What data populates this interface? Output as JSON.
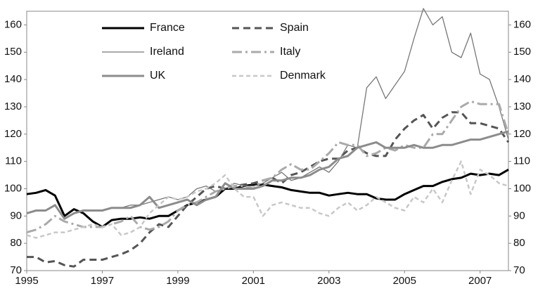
{
  "chart_data": {
    "type": "line",
    "x": [
      1995,
      1995.25,
      1995.5,
      1995.75,
      1996,
      1996.25,
      1996.5,
      1996.75,
      1997,
      1997.25,
      1997.5,
      1997.75,
      1998,
      1998.25,
      1998.5,
      1998.75,
      1999,
      1999.25,
      1999.5,
      1999.75,
      2000,
      2000.25,
      2000.5,
      2000.75,
      2001,
      2001.25,
      2001.5,
      2001.75,
      2002,
      2002.25,
      2002.5,
      2002.75,
      2003,
      2003.25,
      2003.5,
      2003.75,
      2004,
      2004.25,
      2004.5,
      2004.75,
      2005,
      2005.25,
      2005.5,
      2005.75,
      2006,
      2006.25,
      2006.5,
      2006.75,
      2007,
      2007.25,
      2007.5,
      2007.75
    ],
    "series": [
      {
        "name": "France",
        "color": "#000000",
        "width": 3,
        "dash": "none",
        "values": [
          98,
          98.5,
          99.5,
          97.5,
          90,
          92.5,
          91,
          88,
          86,
          88.5,
          89,
          89,
          89.5,
          89,
          90,
          90,
          92,
          94,
          95,
          96,
          97,
          100,
          100,
          101,
          101.5,
          101.5,
          101,
          100.5,
          99.5,
          99,
          98.5,
          98.5,
          97.5,
          98,
          98.5,
          98,
          98,
          96.5,
          96,
          96,
          98,
          99.5,
          101,
          101,
          102.5,
          103.5,
          104,
          105.5,
          105,
          105.5,
          105,
          107
        ]
      },
      {
        "name": "Spain",
        "color": "#555555",
        "width": 3,
        "dash": "10,6",
        "values": [
          75,
          75,
          73,
          73.5,
          72,
          71.5,
          74,
          74,
          74,
          75,
          76,
          77.5,
          80,
          84,
          87,
          86,
          90,
          94,
          97,
          100,
          101,
          100,
          101,
          101.5,
          102,
          103,
          104,
          102,
          105,
          106,
          108,
          110,
          111,
          111,
          114,
          115,
          113,
          112,
          112,
          118,
          122,
          125,
          127,
          122,
          126,
          128,
          128,
          124,
          124,
          123,
          122,
          117
        ]
      },
      {
        "name": "Ireland",
        "color": "#777777",
        "width": 1.3,
        "dash": "none",
        "values": [
          null,
          null,
          null,
          null,
          null,
          null,
          null,
          null,
          92,
          93,
          93,
          94,
          94,
          95,
          96,
          97,
          96,
          97,
          100,
          101,
          99,
          100,
          102,
          101,
          101,
          102,
          104,
          106,
          103,
          104,
          106,
          108,
          106,
          110,
          116,
          115,
          137,
          141,
          133,
          138,
          143,
          155,
          166,
          160,
          163,
          150,
          148,
          157,
          142,
          140,
          130,
          118
        ]
      },
      {
        "name": "Italy",
        "color": "#aaaaaa",
        "width": 3,
        "dash": "14,5,3,5",
        "values": [
          84,
          85,
          87,
          90,
          88,
          87,
          86,
          86,
          86,
          87,
          88,
          90,
          86,
          85,
          86,
          88,
          92,
          94,
          95,
          97,
          99,
          100,
          101,
          101,
          100,
          103,
          104,
          107,
          109,
          107,
          107,
          110,
          113,
          117,
          116,
          116,
          112,
          113,
          115,
          114,
          116,
          115,
          115,
          120,
          120,
          125,
          130,
          132,
          131,
          131,
          131,
          120
        ]
      },
      {
        "name": "UK",
        "color": "#8c8c8c",
        "width": 3,
        "dash": "none",
        "values": [
          91,
          92,
          92,
          94,
          89,
          91,
          92,
          92,
          92,
          93,
          93,
          93,
          94,
          97,
          93,
          94,
          95,
          96,
          94,
          96,
          97,
          102,
          100,
          100,
          100,
          101,
          103,
          103,
          104,
          104,
          105,
          107,
          108,
          111,
          112,
          115,
          116,
          117,
          115,
          115,
          115,
          116,
          115,
          115,
          116,
          116,
          117,
          118,
          118,
          119,
          120,
          121
        ]
      },
      {
        "name": "Denmark",
        "color": "#c8c8c8",
        "width": 2.5,
        "dash": "6,4",
        "values": [
          83,
          82,
          83,
          84,
          84,
          85,
          86,
          87,
          86,
          87,
          83,
          84,
          86,
          91,
          94,
          97,
          96,
          97,
          99,
          100,
          102,
          105,
          100,
          97,
          97,
          90,
          94,
          95,
          94,
          93,
          93,
          91,
          90,
          93,
          95,
          92,
          94,
          97,
          95,
          93,
          92,
          97,
          95,
          100,
          95,
          103,
          110,
          98,
          107,
          105,
          102,
          101
        ]
      }
    ],
    "xlim": [
      1995,
      2007.75
    ],
    "xticks": [
      1995,
      1997,
      1999,
      2001,
      2003,
      2005,
      2007
    ],
    "ylim": [
      70,
      165
    ],
    "yticks": [
      70,
      80,
      90,
      100,
      110,
      120,
      130,
      140,
      150,
      160
    ],
    "y2lim": [
      70,
      165
    ],
    "y2ticks": [
      70,
      80,
      90,
      100,
      110,
      120,
      130,
      140,
      150,
      160
    ],
    "grid": false
  }
}
